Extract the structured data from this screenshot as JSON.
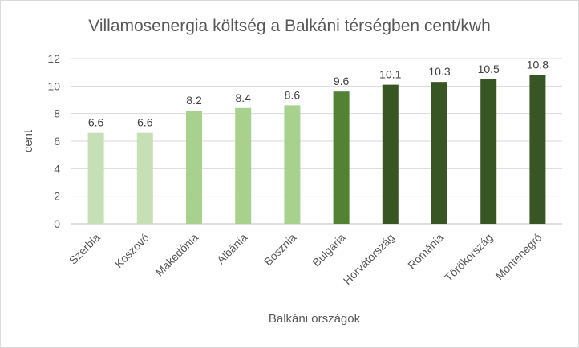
{
  "chart_data": {
    "type": "bar",
    "title": "Villamosenergia költség a Balkáni térségben cent/kwh",
    "xlabel": "Balkáni országok",
    "ylabel": "cent",
    "categories": [
      "Szerbia",
      "Koszovó",
      "Makedónia",
      "Albánia",
      "Bosznia",
      "Bulgária",
      "Horvátország",
      "Románia",
      "Törökország",
      "Montenegró"
    ],
    "values": [
      6.6,
      6.6,
      8.2,
      8.4,
      8.6,
      9.6,
      10.1,
      10.3,
      10.5,
      10.8
    ],
    "data_labels": [
      "6.6",
      "6.6",
      "8.2",
      "8.4",
      "8.6",
      "9.6",
      "10.1",
      "10.3",
      "10.5",
      "10.8"
    ],
    "bar_colors": [
      "#c5e0b4",
      "#c5e0b4",
      "#a9d18e",
      "#a9d18e",
      "#a9d18e",
      "#548235",
      "#375623",
      "#375623",
      "#375623",
      "#375623"
    ],
    "ylim": [
      0,
      12
    ],
    "yticks": [
      0,
      2,
      4,
      6,
      8,
      10,
      12
    ],
    "grid": true,
    "legend": "none"
  }
}
